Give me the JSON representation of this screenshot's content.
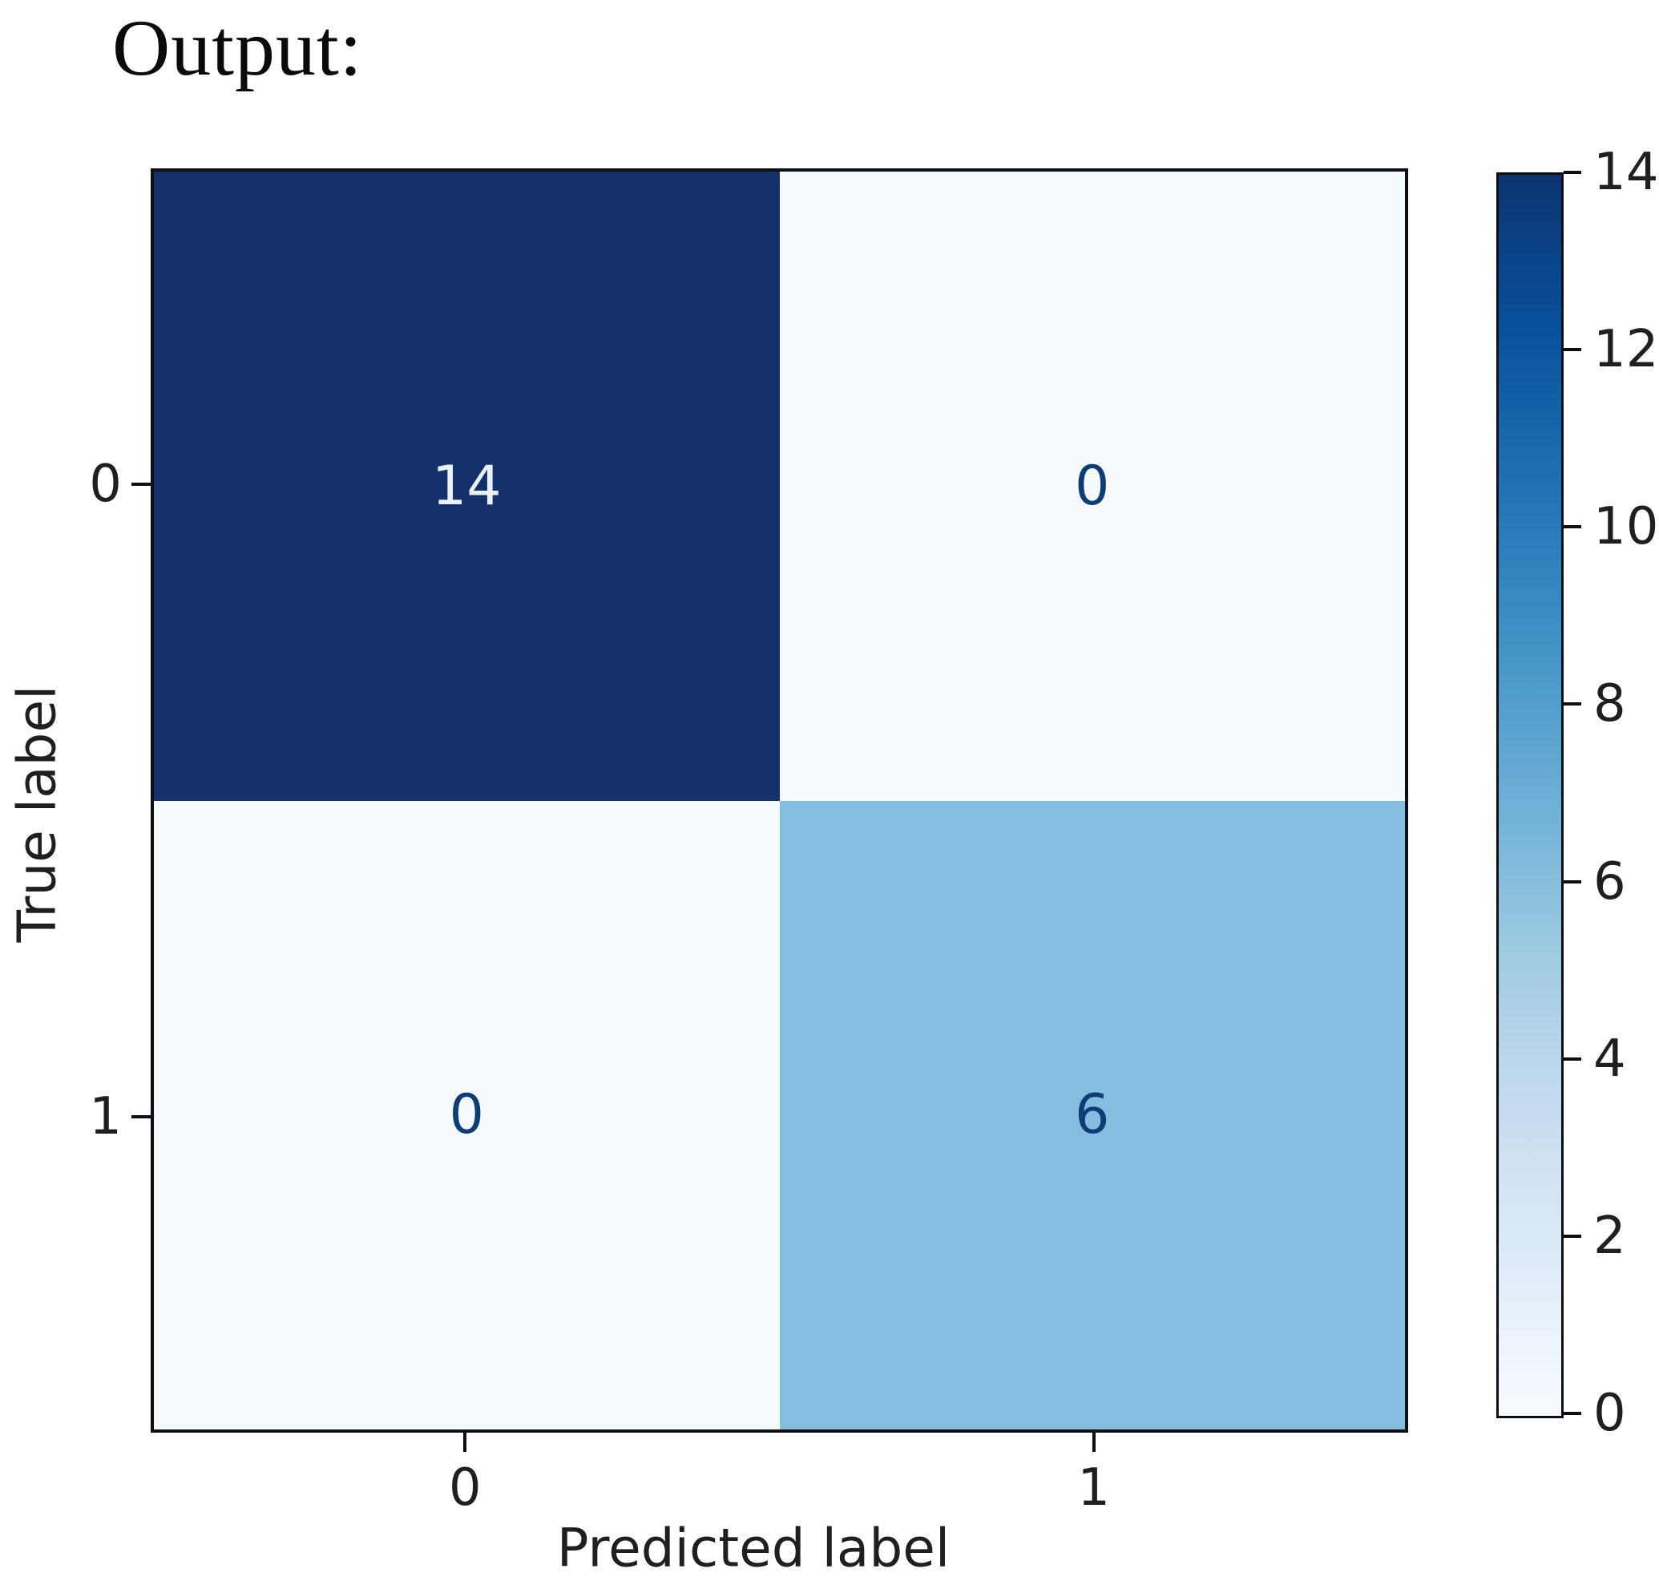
{
  "heading": "Output:",
  "colors": {
    "background": "#ffffff",
    "spine": "#0d0f12",
    "axis_text": "#1f1f1f",
    "cell_dark": "#15316c",
    "cell_light": "#f5fafe",
    "cell_medium": "#85bdde",
    "text_on_dark": "#e9f1fb",
    "text_on_light": "#0e3c76"
  },
  "chart_data": {
    "type": "heatmap",
    "subtype": "confusion_matrix",
    "title": "",
    "xlabel": "Predicted label",
    "ylabel": "True label",
    "x_tick_labels": [
      "0",
      "1"
    ],
    "y_tick_labels": [
      "0",
      "1"
    ],
    "matrix": [
      [
        14,
        0
      ],
      [
        0,
        6
      ]
    ],
    "cell_text": [
      [
        "14",
        "0"
      ],
      [
        "0",
        "6"
      ]
    ],
    "cell_colors": [
      [
        "#15316c",
        "#f5fafe"
      ],
      [
        "#f5fafe",
        "#85bdde"
      ]
    ],
    "cell_text_colors": [
      [
        "#e9f1fb",
        "#0e3c76"
      ],
      [
        "#0e3c76",
        "#0e3c76"
      ]
    ],
    "vmin": 0,
    "vmax": 14,
    "colormap": "Blues",
    "colormap_stops_low_to_high": [
      "#f7fbff",
      "#deebf7",
      "#c6dbef",
      "#9ecae1",
      "#6baed6",
      "#4292c6",
      "#2171b5",
      "#08519c",
      "#0d3470"
    ],
    "colorbar_ticks": [
      0,
      2,
      4,
      6,
      8,
      10,
      12,
      14
    ],
    "colorbar_position": "right",
    "grid": false
  }
}
